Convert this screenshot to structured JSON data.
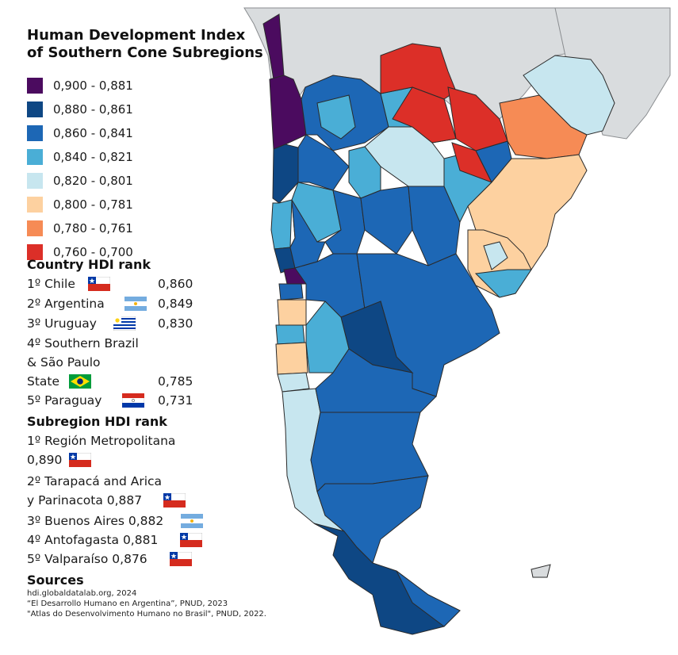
{
  "title": "Human Development Index of Southern Cone Subregions",
  "legend": [
    {
      "label": "0,900 - 0,881",
      "color": "#4b0b5f"
    },
    {
      "label": "0,880 - 0,861",
      "color": "#0e4784"
    },
    {
      "label": "0,860 - 0,841",
      "color": "#1d67b5"
    },
    {
      "label": "0,840 - 0,821",
      "color": "#4aaed6"
    },
    {
      "label": "0,820 - 0,801",
      "color": "#c7e6ef"
    },
    {
      "label": "0,800 - 0,781",
      "color": "#fdd1a0"
    },
    {
      "label": "0,780 - 0,761",
      "color": "#f68b55"
    },
    {
      "label": "0,760 - 0,700",
      "color": "#dc2f28"
    }
  ],
  "country_rank": {
    "heading": "Country HDI rank",
    "items": [
      {
        "label": "1º Chile",
        "value": "0,860",
        "flag": "chile"
      },
      {
        "label": "2º Argentina",
        "value": "0,849",
        "flag": "argentina"
      },
      {
        "label": "3º Uruguay",
        "value": "0,830",
        "flag": "uruguay"
      },
      {
        "line1": "4º Southern Brazil",
        "line2": "& São Paulo",
        "line3": "State",
        "value": "0,785",
        "flag": "brazil"
      },
      {
        "label": "5º Paraguay",
        "value": "0,731",
        "flag": "paraguay"
      }
    ]
  },
  "subregion_rank": {
    "heading": "Subregion HDI rank",
    "items": [
      {
        "line1": "1º Región Metropolitana",
        "line2": "0,890",
        "flag": "chile"
      },
      {
        "line1": "2º Tarapacá and Arica",
        "line2": "y Parinacota 0,887",
        "flag": "chile"
      },
      {
        "line1": "3º Buenos Aires 0,882",
        "flag": "argentina"
      },
      {
        "line1": "4º Antofagasta 0,881",
        "flag": "chile"
      },
      {
        "line1": "5º Valparaíso 0,876",
        "flag": "chile"
      }
    ]
  },
  "sources": {
    "heading": "Sources",
    "lines": [
      "hdi.globaldatalab.org, 2024",
      "“El Desarrollo Humano en Argentina”, PNUD, 2023",
      "\"Atlas do Desenvolvimento Humano no Brasil\", PNUD, 2022."
    ]
  },
  "map_colors": {
    "background_land": "#d9dcde",
    "border": "#2a2a2a",
    "sea": "#ffffff"
  }
}
